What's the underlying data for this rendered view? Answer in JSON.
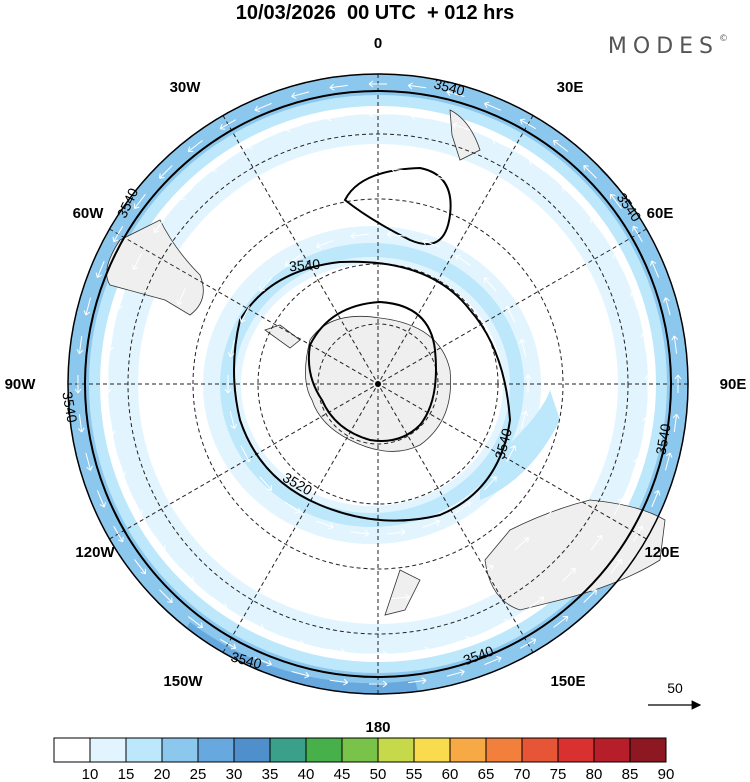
{
  "header": {
    "title": "10/03/2026  00 UTC  + 012 hrs",
    "brand": "MODES",
    "brand_mark": "©"
  },
  "map": {
    "projection": "south-polar-stereographic",
    "longitude_labels": [
      "0",
      "30E",
      "60E",
      "90E",
      "120E",
      "150E",
      "180",
      "150W",
      "120W",
      "90W",
      "60W",
      "30W"
    ],
    "contour_labels": [
      "3540",
      "3540",
      "3540",
      "3540",
      "3540",
      "3540",
      "3540",
      "3540",
      "3540",
      "3520"
    ],
    "vector_reference": "50"
  },
  "colorbar": {
    "ticks": [
      "10",
      "15",
      "20",
      "25",
      "30",
      "35",
      "40",
      "45",
      "50",
      "55",
      "60",
      "65",
      "70",
      "75",
      "80",
      "85",
      "90"
    ],
    "colors": [
      "#ffffff",
      "#e2f5fe",
      "#bde7fb",
      "#8cc8ee",
      "#67a9df",
      "#4f8fcb",
      "#3aa08a",
      "#47b04a",
      "#7ac34a",
      "#c5d94a",
      "#f8dc4e",
      "#f6a944",
      "#f27f3b",
      "#e65535",
      "#d8312f",
      "#b61f29",
      "#8e1821"
    ]
  }
}
